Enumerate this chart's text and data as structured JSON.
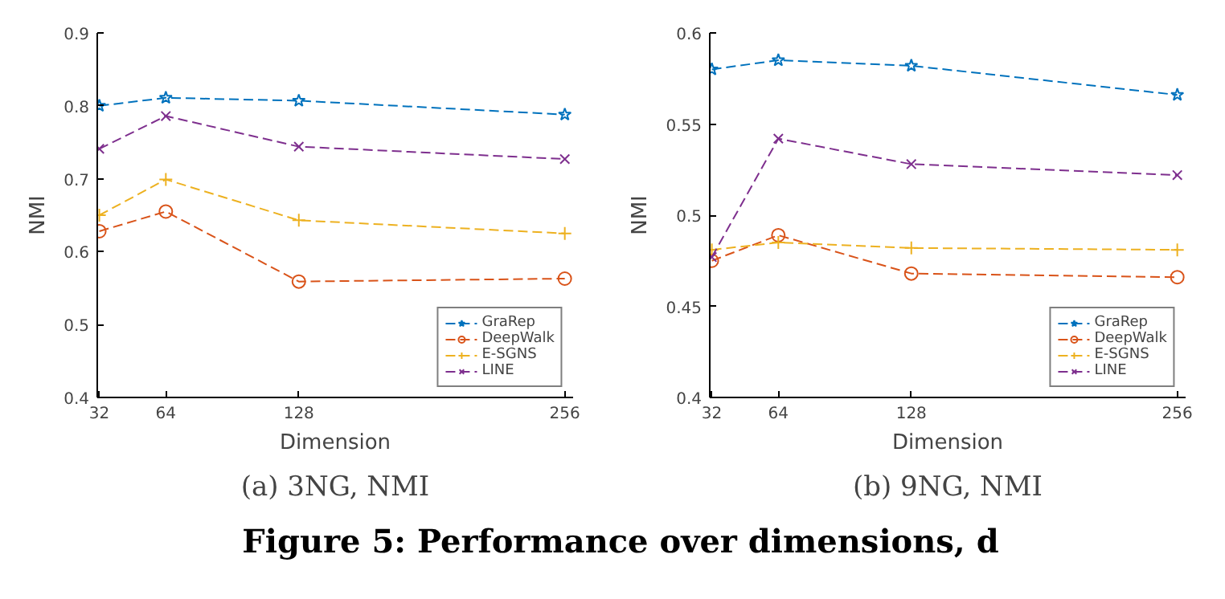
{
  "chart_data": [
    {
      "type": "line",
      "title": "(a) 3NG, NMI",
      "xlabel": "Dimension",
      "ylabel": "NMI",
      "x": [
        32,
        64,
        128,
        256
      ],
      "xlim": [
        31,
        260
      ],
      "xticks": [
        32,
        64,
        128,
        256
      ],
      "ylim": [
        0.4,
        0.9
      ],
      "yticks": [
        0.4,
        0.5,
        0.6,
        0.7,
        0.8,
        0.9
      ],
      "grid": false,
      "legend": "bottom right",
      "line_style": "dashed",
      "annotations": [
        "Figure 5: Performance over dimensions, d"
      ],
      "series": [
        {
          "name": "GraRep",
          "color": "#0072bd",
          "marker": "star",
          "values": [
            0.8,
            0.811,
            0.807,
            0.788
          ]
        },
        {
          "name": "DeepWalk",
          "color": "#d95319",
          "marker": "circle",
          "values": [
            0.628,
            0.655,
            0.559,
            0.563
          ]
        },
        {
          "name": "E-SGNS",
          "color": "#edb120",
          "marker": "cross",
          "values": [
            0.65,
            0.699,
            0.643,
            0.625
          ]
        },
        {
          "name": "LINE",
          "color": "#7e2f8e",
          "marker": "x",
          "values": [
            0.741,
            0.786,
            0.744,
            0.727
          ]
        }
      ]
    },
    {
      "type": "line",
      "title": "(b) 9NG, NMI",
      "xlabel": "Dimension",
      "ylabel": "NMI",
      "x": [
        32,
        64,
        128,
        256
      ],
      "xlim": [
        31,
        260
      ],
      "xticks": [
        32,
        64,
        128,
        256
      ],
      "ylim": [
        0.4,
        0.6
      ],
      "yticks": [
        0.4,
        0.45,
        0.5,
        0.55,
        0.6
      ],
      "grid": false,
      "legend": "bottom right",
      "line_style": "dashed",
      "series": [
        {
          "name": "GraRep",
          "color": "#0072bd",
          "marker": "star",
          "values": [
            0.58,
            0.585,
            0.582,
            0.566
          ]
        },
        {
          "name": "DeepWalk",
          "color": "#d95319",
          "marker": "circle",
          "values": [
            0.475,
            0.489,
            0.468,
            0.466
          ]
        },
        {
          "name": "E-SGNS",
          "color": "#edb120",
          "marker": "cross",
          "values": [
            0.481,
            0.485,
            0.482,
            0.481
          ]
        },
        {
          "name": "LINE",
          "color": "#7e2f8e",
          "marker": "x",
          "values": [
            0.477,
            0.542,
            0.528,
            0.522
          ]
        }
      ]
    }
  ]
}
